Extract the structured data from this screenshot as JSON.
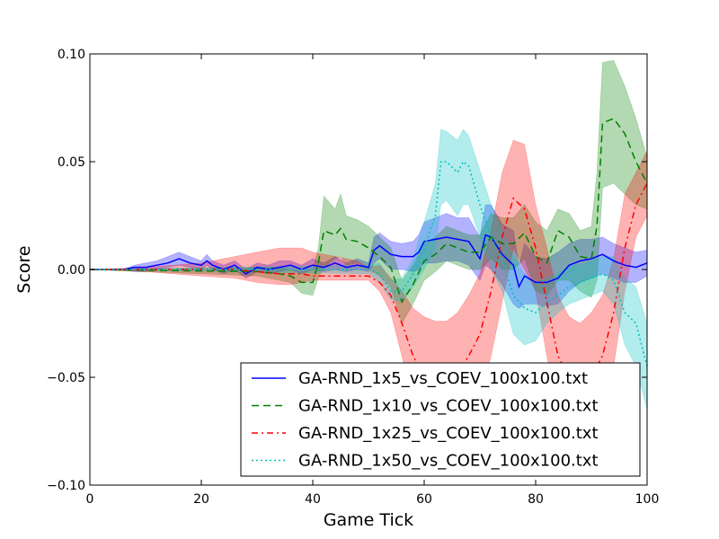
{
  "chart_data": {
    "type": "line",
    "title": "",
    "xlabel": "Game Tick",
    "ylabel": "Score",
    "xlim": [
      0,
      100
    ],
    "ylim": [
      -0.1,
      0.1
    ],
    "xticks": [
      0,
      20,
      40,
      60,
      80,
      100
    ],
    "yticks": [
      -0.1,
      -0.05,
      0.0,
      0.05,
      0.1
    ],
    "xtick_labels": [
      "0",
      "20",
      "40",
      "60",
      "80",
      "100"
    ],
    "ytick_labels": [
      "−0.10",
      "−0.05",
      "0.00",
      "0.05",
      "0.10"
    ],
    "grid": false,
    "legend_position": "lower-right",
    "series": [
      {
        "name": "GA-RND_1x5_vs_COEV_100x100.txt",
        "color": "#0000ff",
        "dash": "solid",
        "x": [
          0,
          6,
          8,
          10,
          12,
          14,
          16,
          18,
          20,
          21,
          22,
          24,
          26,
          28,
          30,
          32,
          34,
          36,
          38,
          40,
          42,
          44,
          46,
          48,
          50,
          51,
          52,
          54,
          56,
          58,
          59,
          60,
          62,
          64,
          66,
          68,
          70,
          71,
          72,
          74,
          76,
          77,
          78,
          80,
          82,
          84,
          86,
          88,
          90,
          92,
          94,
          96,
          98,
          100
        ],
        "y": [
          0,
          0,
          0.001,
          0.001,
          0.002,
          0.003,
          0.005,
          0.003,
          0.002,
          0.004,
          0.002,
          0,
          0.002,
          -0.002,
          0.001,
          0,
          0.001,
          0.002,
          0,
          0.002,
          0.001,
          0.003,
          0.001,
          0.002,
          0.001,
          0.009,
          0.011,
          0.007,
          0.006,
          0.006,
          0.008,
          0.013,
          0.014,
          0.015,
          0.014,
          0.013,
          0.005,
          0.016,
          0.015,
          0.007,
          0.002,
          -0.008,
          -0.003,
          -0.006,
          -0.006,
          -0.004,
          0.002,
          0.004,
          0.005,
          0.007,
          0.004,
          0.002,
          0.001,
          0.003
        ],
        "lower": [
          0,
          0,
          -0.001,
          -0.001,
          0,
          0.001,
          0.002,
          0.001,
          0,
          0.002,
          0,
          -0.002,
          0,
          -0.004,
          -0.001,
          -0.002,
          -0.001,
          0,
          -0.002,
          0,
          -0.001,
          0,
          -0.001,
          0,
          -0.001,
          0.003,
          0.005,
          0,
          0,
          -0.001,
          0,
          0.003,
          0.003,
          0.004,
          0.004,
          0.002,
          -0.005,
          0.002,
          0,
          -0.007,
          -0.016,
          -0.018,
          -0.016,
          -0.016,
          -0.017,
          -0.016,
          -0.01,
          -0.006,
          -0.004,
          -0.002,
          -0.004,
          -0.006,
          -0.006,
          -0.003
        ],
        "upper": [
          0,
          0,
          0.002,
          0.003,
          0.004,
          0.006,
          0.008,
          0.006,
          0.004,
          0.007,
          0.004,
          0.002,
          0.004,
          0,
          0.003,
          0.002,
          0.004,
          0.004,
          0.002,
          0.005,
          0.003,
          0.006,
          0.003,
          0.005,
          0.003,
          0.015,
          0.017,
          0.013,
          0.012,
          0.013,
          0.016,
          0.022,
          0.024,
          0.026,
          0.024,
          0.024,
          0.015,
          0.03,
          0.03,
          0.021,
          0.018,
          0.002,
          0.012,
          0.006,
          0.005,
          0.008,
          0.012,
          0.014,
          0.014,
          0.015,
          0.012,
          0.01,
          0.008,
          0.009
        ]
      },
      {
        "name": "GA-RND_1x10_vs_COEV_100x100.txt",
        "color": "#008000",
        "dash": "dashed",
        "x": [
          0,
          30,
          34,
          36,
          38,
          40,
          41,
          42,
          44,
          45,
          46,
          48,
          50,
          52,
          54,
          56,
          58,
          60,
          62,
          64,
          66,
          68,
          70,
          72,
          74,
          76,
          78,
          80,
          82,
          84,
          86,
          88,
          90,
          91,
          92,
          94,
          96,
          98,
          100
        ],
        "y": [
          0,
          -0.001,
          -0.002,
          -0.003,
          -0.006,
          -0.006,
          0.003,
          0.018,
          0.016,
          0.019,
          0.014,
          0.013,
          0.01,
          0.006,
          0.001,
          -0.015,
          -0.007,
          0.004,
          0.007,
          0.012,
          0.01,
          0.008,
          0.008,
          0.015,
          0.012,
          0.012,
          0.017,
          0.006,
          0.003,
          0.018,
          0.015,
          0.006,
          0.005,
          0.02,
          0.068,
          0.07,
          0.063,
          0.05,
          0.04
        ],
        "lower": [
          0,
          -0.003,
          -0.005,
          -0.006,
          -0.011,
          -0.012,
          -0.004,
          0.001,
          0.005,
          0.006,
          0.002,
          0.003,
          0,
          -0.003,
          -0.008,
          -0.025,
          -0.016,
          -0.005,
          -0.001,
          0.004,
          0.002,
          0,
          0,
          0.005,
          0,
          0,
          0.005,
          -0.01,
          -0.012,
          -0.005,
          -0.005,
          -0.01,
          -0.013,
          -0.005,
          0.038,
          0.04,
          0.035,
          0.03,
          0.028
        ],
        "upper": [
          0,
          0.001,
          0.001,
          0,
          -0.001,
          0,
          0.01,
          0.034,
          0.028,
          0.035,
          0.025,
          0.023,
          0.02,
          0.015,
          0.01,
          -0.005,
          0.002,
          0.012,
          0.015,
          0.02,
          0.018,
          0.016,
          0.016,
          0.026,
          0.024,
          0.024,
          0.03,
          0.022,
          0.018,
          0.028,
          0.026,
          0.018,
          0.02,
          0.045,
          0.096,
          0.097,
          0.085,
          0.07,
          0.052
        ]
      },
      {
        "name": "GA-RND_1x25_vs_COEV_100x100.txt",
        "color": "#ff0000",
        "dash": "dashdot",
        "x": [
          0,
          10,
          20,
          26,
          30,
          34,
          36,
          38,
          40,
          44,
          48,
          50,
          52,
          54,
          56,
          58,
          60,
          62,
          64,
          66,
          68,
          70,
          72,
          74,
          76,
          78,
          80,
          82,
          84,
          86,
          88,
          90,
          92,
          94,
          96,
          98,
          100
        ],
        "y": [
          0,
          0,
          0,
          0,
          -0.001,
          -0.002,
          -0.002,
          -0.002,
          -0.003,
          -0.003,
          -0.003,
          -0.003,
          -0.006,
          -0.012,
          -0.025,
          -0.04,
          -0.05,
          -0.053,
          -0.053,
          -0.048,
          -0.04,
          -0.03,
          -0.01,
          0.015,
          0.033,
          0.028,
          0.01,
          -0.015,
          -0.04,
          -0.05,
          -0.055,
          -0.05,
          -0.04,
          -0.02,
          0.01,
          0.03,
          0.04
        ],
        "lower": [
          0,
          -0.001,
          -0.003,
          -0.004,
          -0.006,
          -0.007,
          -0.007,
          -0.006,
          -0.005,
          -0.005,
          -0.005,
          -0.005,
          -0.01,
          -0.02,
          -0.04,
          -0.065,
          -0.08,
          -0.088,
          -0.085,
          -0.078,
          -0.07,
          -0.06,
          -0.04,
          -0.015,
          0.01,
          0.0,
          -0.01,
          -0.04,
          -0.065,
          -0.08,
          -0.085,
          -0.078,
          -0.065,
          -0.045,
          -0.01,
          0.015,
          0.025
        ],
        "upper": [
          0,
          0.001,
          0.003,
          0.006,
          0.008,
          0.01,
          0.01,
          0.01,
          0.008,
          0.006,
          0.004,
          0.001,
          0.002,
          -0.004,
          -0.01,
          -0.018,
          -0.022,
          -0.024,
          -0.024,
          -0.02,
          -0.012,
          -0.002,
          0.018,
          0.045,
          0.06,
          0.058,
          0.03,
          0.01,
          -0.012,
          -0.022,
          -0.025,
          -0.02,
          -0.012,
          0.005,
          0.035,
          0.045,
          0.055
        ]
      },
      {
        "name": "GA-RND_1x50_vs_COEV_100x100.txt",
        "color": "#00bfbf",
        "dash": "dotted",
        "x": [
          0,
          50,
          52,
          54,
          56,
          58,
          60,
          62,
          63,
          64,
          66,
          67,
          68,
          70,
          72,
          74,
          76,
          78,
          80,
          82,
          84,
          86,
          88,
          90,
          92,
          94,
          96,
          98,
          100
        ],
        "y": [
          0,
          0,
          -0.002,
          -0.01,
          -0.01,
          -0.002,
          0.01,
          0.025,
          0.05,
          0.05,
          0.045,
          0.05,
          0.048,
          0.03,
          0.015,
          0.004,
          -0.012,
          -0.018,
          -0.02,
          -0.015,
          -0.012,
          -0.008,
          -0.006,
          -0.004,
          -0.002,
          -0.005,
          -0.02,
          -0.025,
          -0.045
        ],
        "lower": [
          0,
          -0.002,
          -0.006,
          -0.014,
          -0.015,
          -0.008,
          0.0,
          0.01,
          0.03,
          0.032,
          0.025,
          0.03,
          0.03,
          0.015,
          0,
          -0.01,
          -0.03,
          -0.035,
          -0.033,
          -0.025,
          -0.02,
          -0.016,
          -0.014,
          -0.012,
          -0.01,
          -0.016,
          -0.035,
          -0.045,
          -0.065
        ],
        "upper": [
          0,
          0.002,
          0.003,
          -0.005,
          -0.004,
          0.005,
          0.022,
          0.04,
          0.065,
          0.064,
          0.06,
          0.065,
          0.062,
          0.046,
          0.03,
          0.018,
          0.005,
          -0.002,
          -0.006,
          -0.004,
          -0.002,
          0.002,
          0.002,
          0.004,
          0.006,
          0.006,
          -0.004,
          -0.008,
          -0.025
        ]
      }
    ]
  }
}
